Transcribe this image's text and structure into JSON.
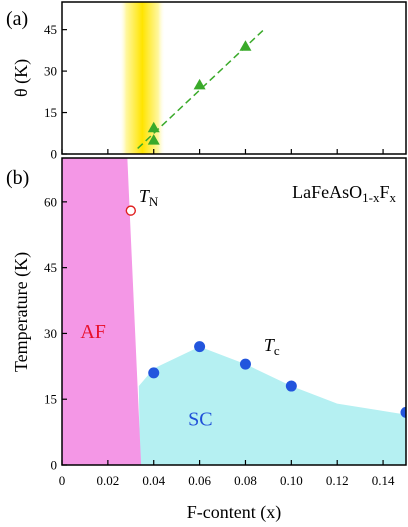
{
  "colors": {
    "af_region": "#f497e6",
    "sc_region": "#b5f0f2",
    "tc_points": "#2255dd",
    "tn_point_stroke": "#e02020",
    "theta_series": "#3aaa2a",
    "yellow_band_core": "#ffe400"
  },
  "chart_data": [
    {
      "panel": "a",
      "panel_label": "(a)",
      "type": "scatter",
      "ylabel": "θ (K)",
      "xlim": [
        0,
        0.15
      ],
      "ylim": [
        0,
        55
      ],
      "yticks": [
        "0",
        "15",
        "30",
        "45"
      ],
      "yticks_values": [
        0,
        15,
        30,
        45
      ],
      "xaxis_ticks": [
        0,
        0.02,
        0.04,
        0.06,
        0.08,
        0.1,
        0.12,
        0.14
      ],
      "highlight_band_x": [
        0.025,
        0.045
      ],
      "series": [
        {
          "marker": "triangle",
          "x": [
            0.04,
            0.04,
            0.06,
            0.08
          ],
          "y": [
            5,
            9.5,
            25,
            39
          ]
        }
      ],
      "fit_line": {
        "style": "dashed",
        "x": [
          0.033,
          0.088
        ],
        "y": [
          2,
          45
        ]
      }
    },
    {
      "panel": "b",
      "panel_label": "(b)",
      "type": "scatter",
      "xlabel": "F-content (x)",
      "ylabel": "Temperature (K)",
      "compound": {
        "prefix": "LaFeAsO",
        "sub": "1-x",
        "mid": "F",
        "sub2": "x"
      },
      "xlim": [
        0,
        0.15
      ],
      "ylim": [
        0,
        70
      ],
      "xticks": [
        "0",
        "0.02",
        "0.04",
        "0.06",
        "0.08",
        "0.10",
        "0.12",
        "0.14"
      ],
      "xticks_values": [
        0,
        0.02,
        0.04,
        0.06,
        0.08,
        0.1,
        0.12,
        0.14
      ],
      "yticks": [
        "0",
        "15",
        "30",
        "45",
        "60"
      ],
      "yticks_values": [
        0,
        15,
        30,
        45,
        60
      ],
      "regions": [
        {
          "label": "AF",
          "label_pos": [
            0.008,
            29
          ],
          "boundary": [
            [
              0,
              70
            ],
            [
              0.0285,
              70
            ],
            [
              0.0295,
              58
            ],
            [
              0.0345,
              0
            ],
            [
              0,
              0
            ]
          ]
        },
        {
          "label": "SC",
          "label_pos": [
            0.055,
            9
          ],
          "boundary": [
            [
              0.034,
              0
            ],
            [
              0.0335,
              18
            ],
            [
              0.04,
              22
            ],
            [
              0.06,
              27
            ],
            [
              0.08,
              23
            ],
            [
              0.1,
              18
            ],
            [
              0.12,
              14
            ],
            [
              0.15,
              11.5
            ],
            [
              0.15,
              0
            ]
          ]
        }
      ],
      "series": [
        {
          "name": "T",
          "subscript": "N",
          "marker": "open-circle",
          "label_pos": [
            0.0335,
            60
          ],
          "x": [
            0.03
          ],
          "y": [
            58
          ]
        },
        {
          "name": "T",
          "subscript": "c",
          "marker": "filled-circle",
          "label_pos": [
            0.088,
            26
          ],
          "x": [
            0.04,
            0.06,
            0.08,
            0.1,
            0.15
          ],
          "y": [
            21,
            27,
            23,
            18,
            12
          ]
        }
      ]
    }
  ]
}
